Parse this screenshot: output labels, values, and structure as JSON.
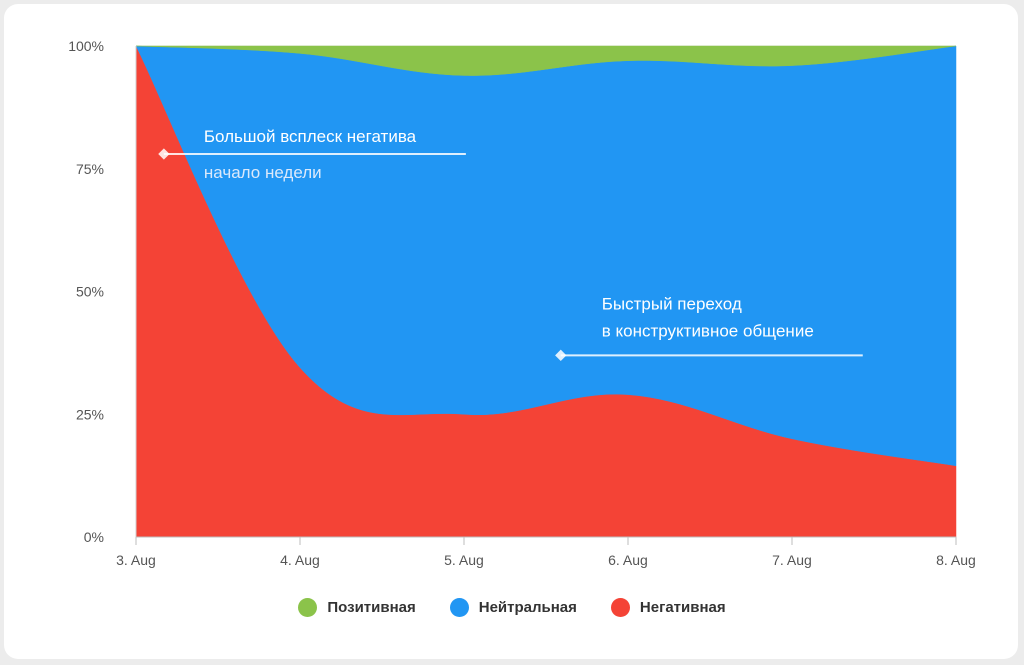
{
  "chart_data": {
    "type": "area",
    "stacked": true,
    "normalized": true,
    "x": [
      "3. Aug",
      "4. Aug",
      "5. Aug",
      "6. Aug",
      "7. Aug",
      "8. Aug"
    ],
    "yticks": [
      "0%",
      "25%",
      "50%",
      "75%",
      "100%"
    ],
    "ylim": [
      0,
      100
    ],
    "grid": true,
    "legend_position": "bottom",
    "series": [
      {
        "name": "Позитивная",
        "color": "#8bc34a",
        "values": [
          0,
          1.5,
          6,
          3,
          4,
          0
        ]
      },
      {
        "name": "Нейтральная",
        "color": "#2196f3",
        "values": [
          0,
          64,
          69,
          68,
          76,
          85.5
        ]
      },
      {
        "name": "Негативная",
        "color": "#f44336",
        "values": [
          100,
          34.5,
          25,
          29,
          20,
          14.5
        ]
      }
    ],
    "annotations": [
      {
        "title": "Большой всплеск негатива",
        "subtitle": "начало недели",
        "x": "3. Aug",
        "x_offset": 0.17,
        "y": 78
      },
      {
        "title": "Быстрый переход",
        "subtitle": "в конструктивное общение",
        "x": "5. Aug",
        "x_offset": 0.59,
        "y": 37
      }
    ]
  }
}
